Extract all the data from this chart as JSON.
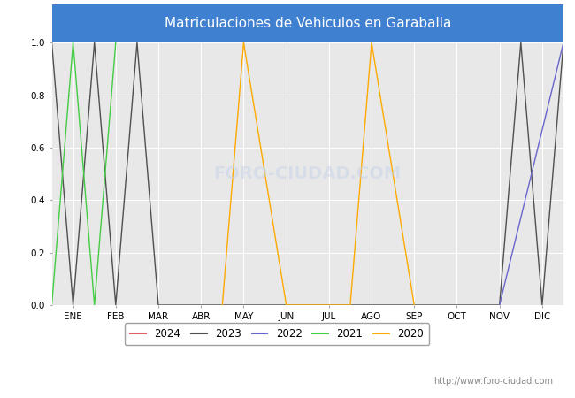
{
  "title": "Matriculaciones de Vehiculos en Garaballa",
  "title_bg_color": "#4080d0",
  "title_text_color": "white",
  "plot_bg_color": "#e8e8e8",
  "months": [
    "ENE",
    "FEB",
    "MAR",
    "ABR",
    "MAY",
    "JUN",
    "JUL",
    "AGO",
    "SEP",
    "OCT",
    "NOV",
    "DIC"
  ],
  "month_indices": [
    1,
    2,
    3,
    4,
    5,
    6,
    7,
    8,
    9,
    10,
    11,
    12
  ],
  "series": {
    "2024": {
      "color": "#e06060",
      "data_x": [],
      "data_y": []
    },
    "2023": {
      "color": "#505050",
      "data_x": [
        0.5,
        1.0,
        1.5,
        2.0,
        2.5,
        3.0,
        11.0,
        11.5,
        12.0,
        12.5
      ],
      "data_y": [
        1.0,
        0.0,
        1.0,
        0.0,
        1.0,
        0.0,
        0.0,
        1.0,
        0.0,
        1.0
      ]
    },
    "2022": {
      "color": "#6666cc",
      "data_x": [
        11.0,
        12.5
      ],
      "data_y": [
        0.0,
        1.0
      ]
    },
    "2021": {
      "color": "#44cc44",
      "data_x": [
        0.5,
        1.0,
        1.5,
        2.0
      ],
      "data_y": [
        0.0,
        1.0,
        0.0,
        1.0
      ]
    },
    "2020": {
      "color": "#ffaa00",
      "data_x": [
        4.5,
        5.0,
        6.0,
        7.5,
        8.0,
        9.0
      ],
      "data_y": [
        0.0,
        1.0,
        0.0,
        0.0,
        1.0,
        0.0
      ]
    }
  },
  "ylim": [
    0.0,
    1.0
  ],
  "yticks": [
    0.0,
    0.2,
    0.4,
    0.6,
    0.8,
    1.0
  ],
  "xlim": [
    0.5,
    12.5
  ],
  "watermark_bottom": "http://www.foro-ciudad.com",
  "watermark_center": "FORO-CIUDAD.COM",
  "legend_order": [
    "2024",
    "2023",
    "2022",
    "2021",
    "2020"
  ]
}
